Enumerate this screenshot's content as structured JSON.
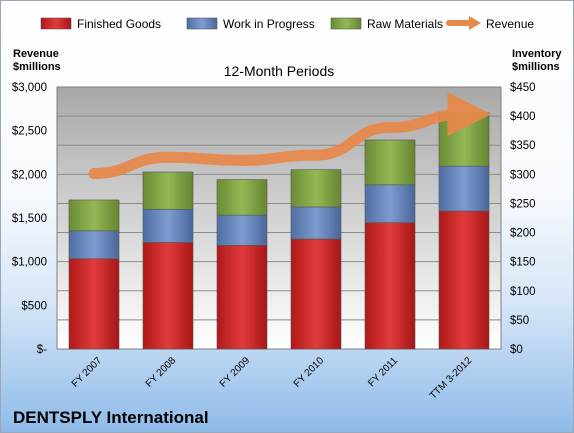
{
  "chart_data": {
    "type": "bar",
    "stacked": true,
    "title": "12-Month Periods",
    "footer": "DENTSPLY International",
    "left_axis_title": [
      "Revenue",
      "$millions"
    ],
    "right_axis_title": [
      "Inventory",
      "$millions"
    ],
    "categories": [
      "FY 2007",
      "FY 2008",
      "FY 2009",
      "FY 2010",
      "FY 2011",
      "TTM 3-2012"
    ],
    "left_axis": {
      "min": 0,
      "max": 3000,
      "ticks": [
        "$-",
        "$500",
        "$1,000",
        "$1,500",
        "$2,000",
        "$2,500",
        "$3,000"
      ]
    },
    "right_axis": {
      "min": 0,
      "max": 450,
      "ticks": [
        "$0",
        "$50",
        "$100",
        "$150",
        "$200",
        "$250",
        "$300",
        "$350",
        "$400",
        "$450"
      ]
    },
    "series": [
      {
        "name": "Finished Goods",
        "axis": "right",
        "color": "#d42a2a",
        "values": [
          155,
          183,
          178,
          189,
          217,
          237
        ]
      },
      {
        "name": "Work in Progress",
        "axis": "right",
        "color": "#6e8fc4",
        "values": [
          48,
          57,
          52,
          55,
          65,
          77
        ]
      },
      {
        "name": "Raw Materials",
        "axis": "right",
        "color": "#8aae4a",
        "values": [
          53,
          64,
          61,
          64,
          77,
          92
        ]
      }
    ],
    "line_series": {
      "name": "Revenue",
      "axis": "left",
      "color": "#e8884a",
      "values": [
        2010,
        2195,
        2160,
        2220,
        2535,
        2690
      ]
    },
    "legend_position": "top",
    "grid": true
  }
}
